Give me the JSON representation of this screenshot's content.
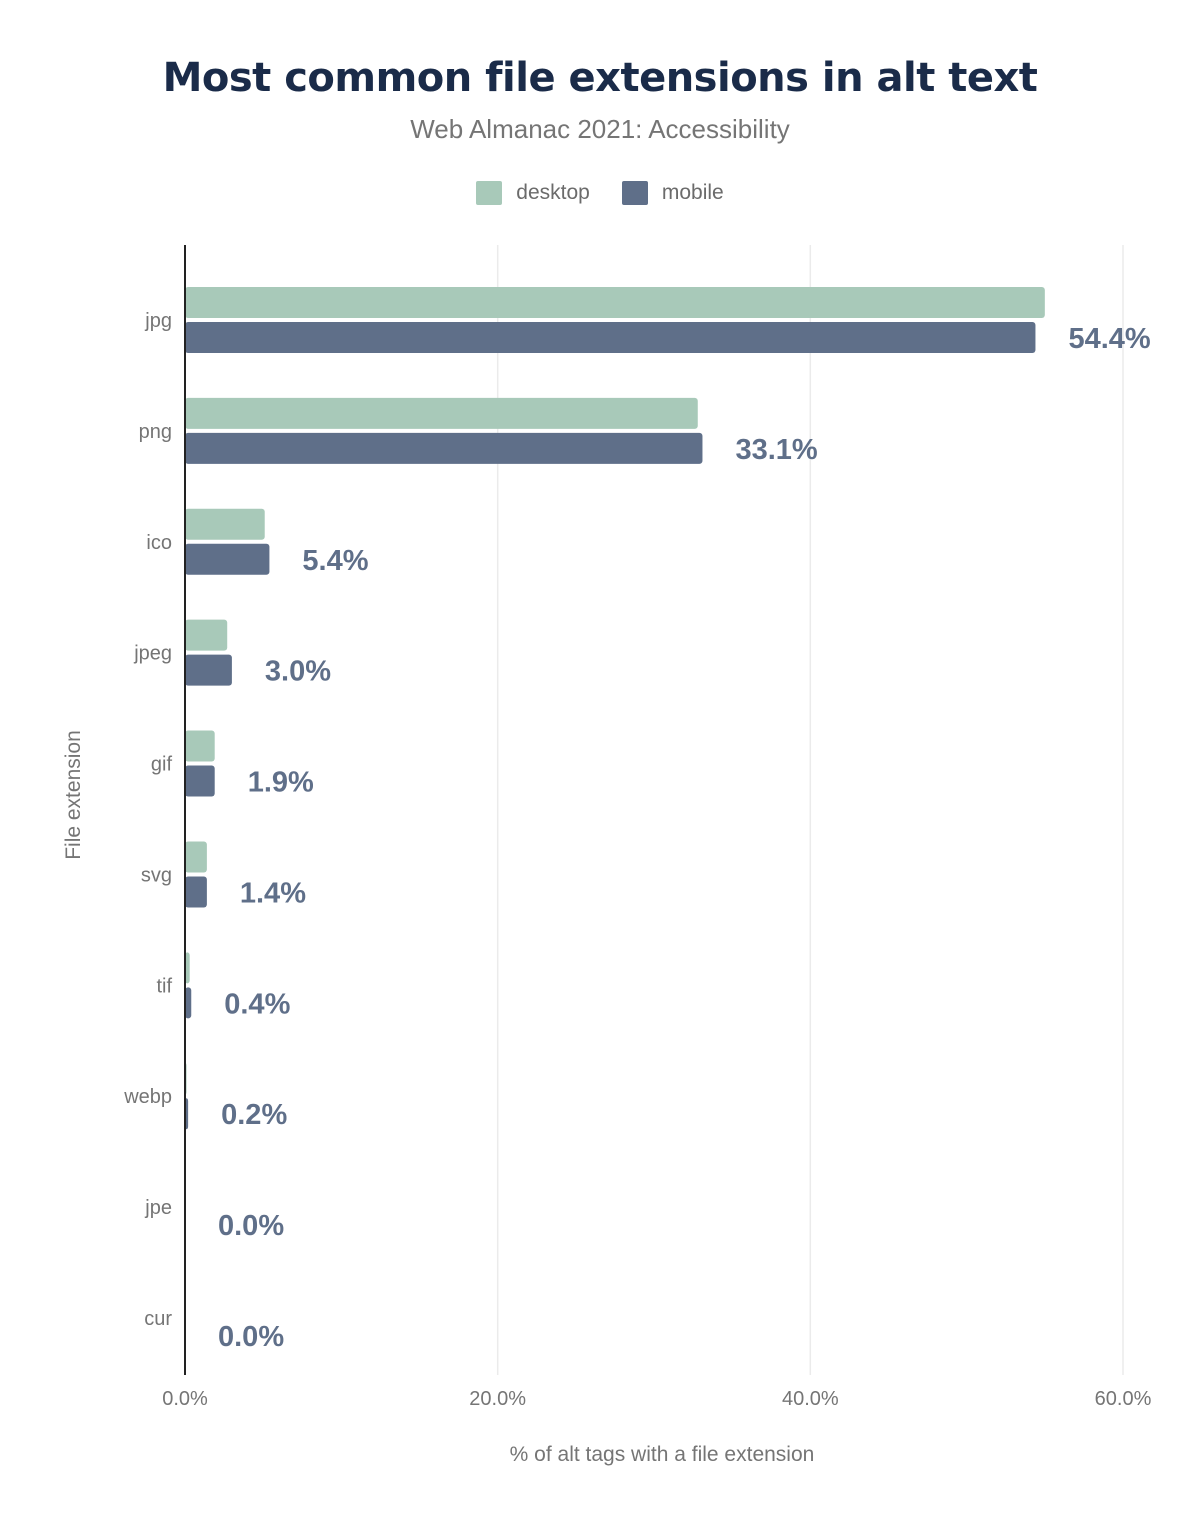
{
  "chart_data": {
    "type": "bar",
    "orientation": "horizontal",
    "title": "Most common file extensions in alt text",
    "subtitle": "Web Almanac 2021: Accessibility",
    "xlabel": "% of alt tags with a file extension",
    "ylabel": "File extension",
    "xlim": [
      0,
      62
    ],
    "xticks": [
      0,
      20,
      40,
      60
    ],
    "xtick_labels": [
      "0.0%",
      "20.0%",
      "40.0%",
      "60.0%"
    ],
    "grid": true,
    "legend": "top",
    "categories": [
      "jpg",
      "png",
      "ico",
      "jpeg",
      "gif",
      "svg",
      "tif",
      "webp",
      "jpe",
      "cur"
    ],
    "series": [
      {
        "name": "desktop",
        "color": "#a8c9b9",
        "values": [
          55.0,
          32.8,
          5.1,
          2.7,
          1.9,
          1.4,
          0.3,
          0.1,
          0.0,
          0.0
        ]
      },
      {
        "name": "mobile",
        "color": "#5f6f89",
        "values": [
          54.4,
          33.1,
          5.4,
          3.0,
          1.9,
          1.4,
          0.4,
          0.2,
          0.0,
          0.0
        ]
      }
    ],
    "data_labels": [
      "54.4%",
      "33.1%",
      "5.4%",
      "3.0%",
      "1.9%",
      "1.4%",
      "0.4%",
      "0.2%",
      "0.0%",
      "0.0%"
    ],
    "data_label_color": "#5f6f89"
  }
}
